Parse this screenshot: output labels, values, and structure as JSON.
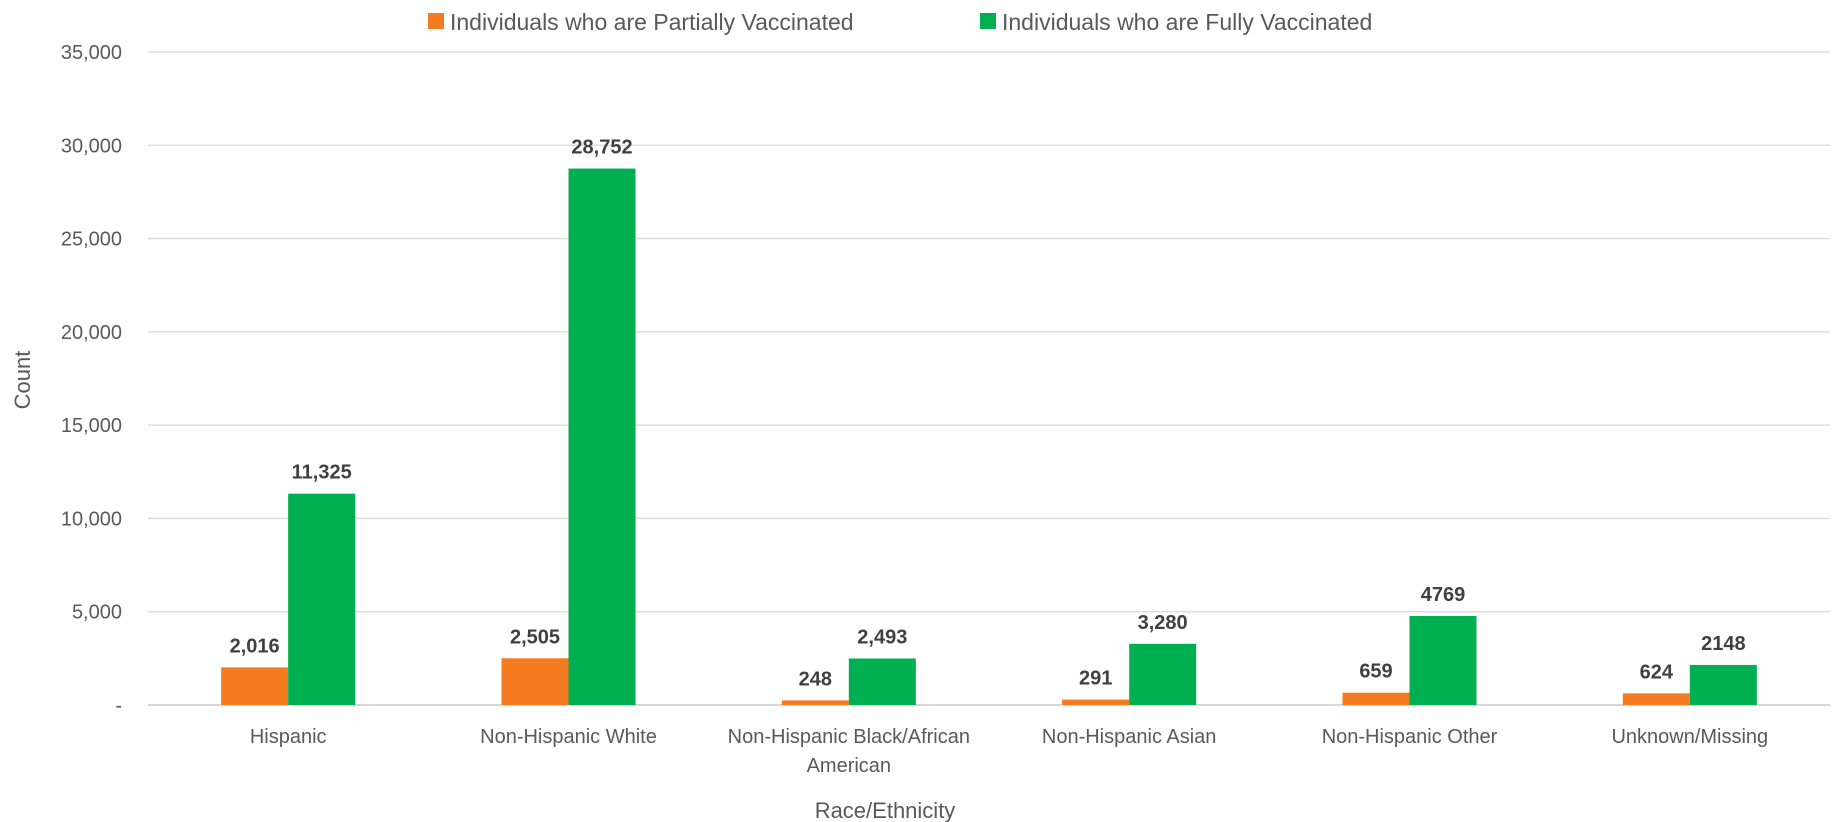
{
  "chart_data": {
    "type": "bar",
    "title": "",
    "xlabel": "Race/Ethnicity",
    "ylabel": "Count",
    "ylim": [
      0,
      35000
    ],
    "yticks": [
      0,
      5000,
      10000,
      15000,
      20000,
      25000,
      30000,
      35000
    ],
    "ytick_labels": [
      "-",
      "5,000",
      "10,000",
      "15,000",
      "20,000",
      "25,000",
      "30,000",
      "35,000"
    ],
    "grid": true,
    "legend_position": "top-center",
    "categories": [
      [
        "Hispanic"
      ],
      [
        "Non-Hispanic White"
      ],
      [
        "Non-Hispanic Black/African",
        "American"
      ],
      [
        "Non-Hispanic Asian"
      ],
      [
        "Non-Hispanic Other"
      ],
      [
        "Unknown/Missing"
      ]
    ],
    "series": [
      {
        "name": "Individuals who are Partially Vaccinated",
        "color": "#F47B20",
        "values": [
          2016,
          2505,
          248,
          291,
          659,
          624
        ],
        "labels": [
          "2,016",
          "2,505",
          "248",
          "291",
          "659",
          "624"
        ]
      },
      {
        "name": "Individuals who are Fully Vaccinated",
        "color": "#00B050",
        "values": [
          11325,
          28752,
          2493,
          3280,
          4769,
          2148
        ],
        "labels": [
          "11,325",
          "28,752",
          "2,493",
          "3,280",
          "4769",
          "2148"
        ]
      }
    ]
  }
}
